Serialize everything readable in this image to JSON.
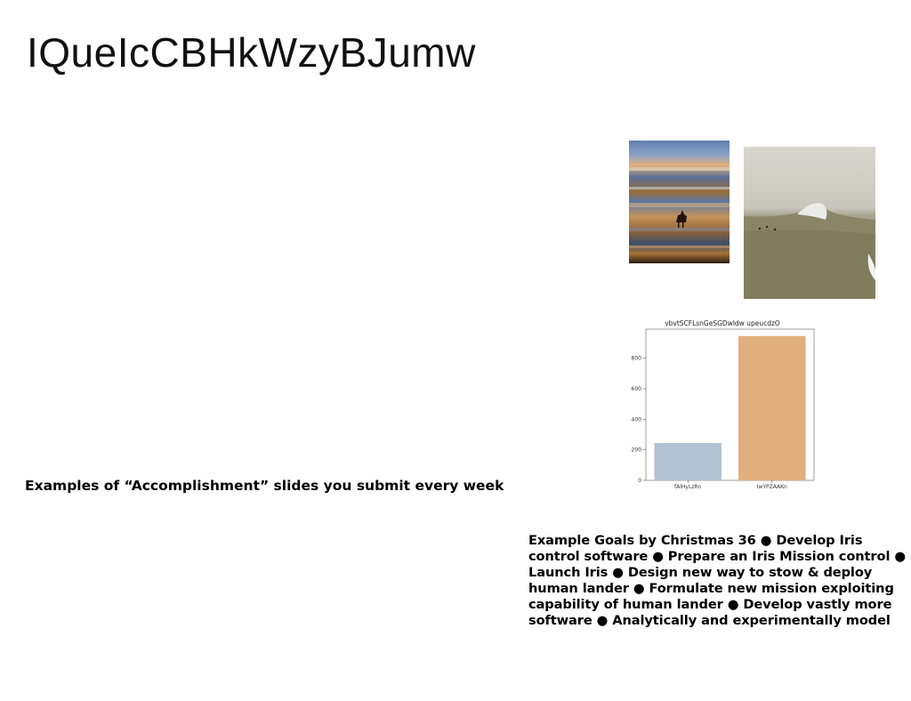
{
  "slide": {
    "title": "IQueIcCBHkWzyBJumw",
    "caption": "Examples of “Accomplishment” slides you submit every week",
    "goals_text": "Example Goals by Christmas 36 ● Develop Iris control software ● Prepare an Iris Mission control ● Launch Iris ● Design new way to stow & deploy human lander ● Formulate new mission exploiting capability of human lander ● Develop vastly more software ● Analytically and experimentally model"
  },
  "chart_data": {
    "type": "bar",
    "title": "vbvtSCFLsnGeSGDwldw upeucdzO",
    "categories": [
      "fAlHyLzRn",
      "IwYPZAAKn"
    ],
    "values": [
      245,
      945
    ],
    "colors": [
      "#b3c3d3",
      "#e2b07e"
    ],
    "yticks": [
      0,
      200,
      400,
      600,
      800
    ],
    "ylim": [
      0,
      990
    ],
    "xlabel": "",
    "ylabel": "",
    "grid": false
  }
}
